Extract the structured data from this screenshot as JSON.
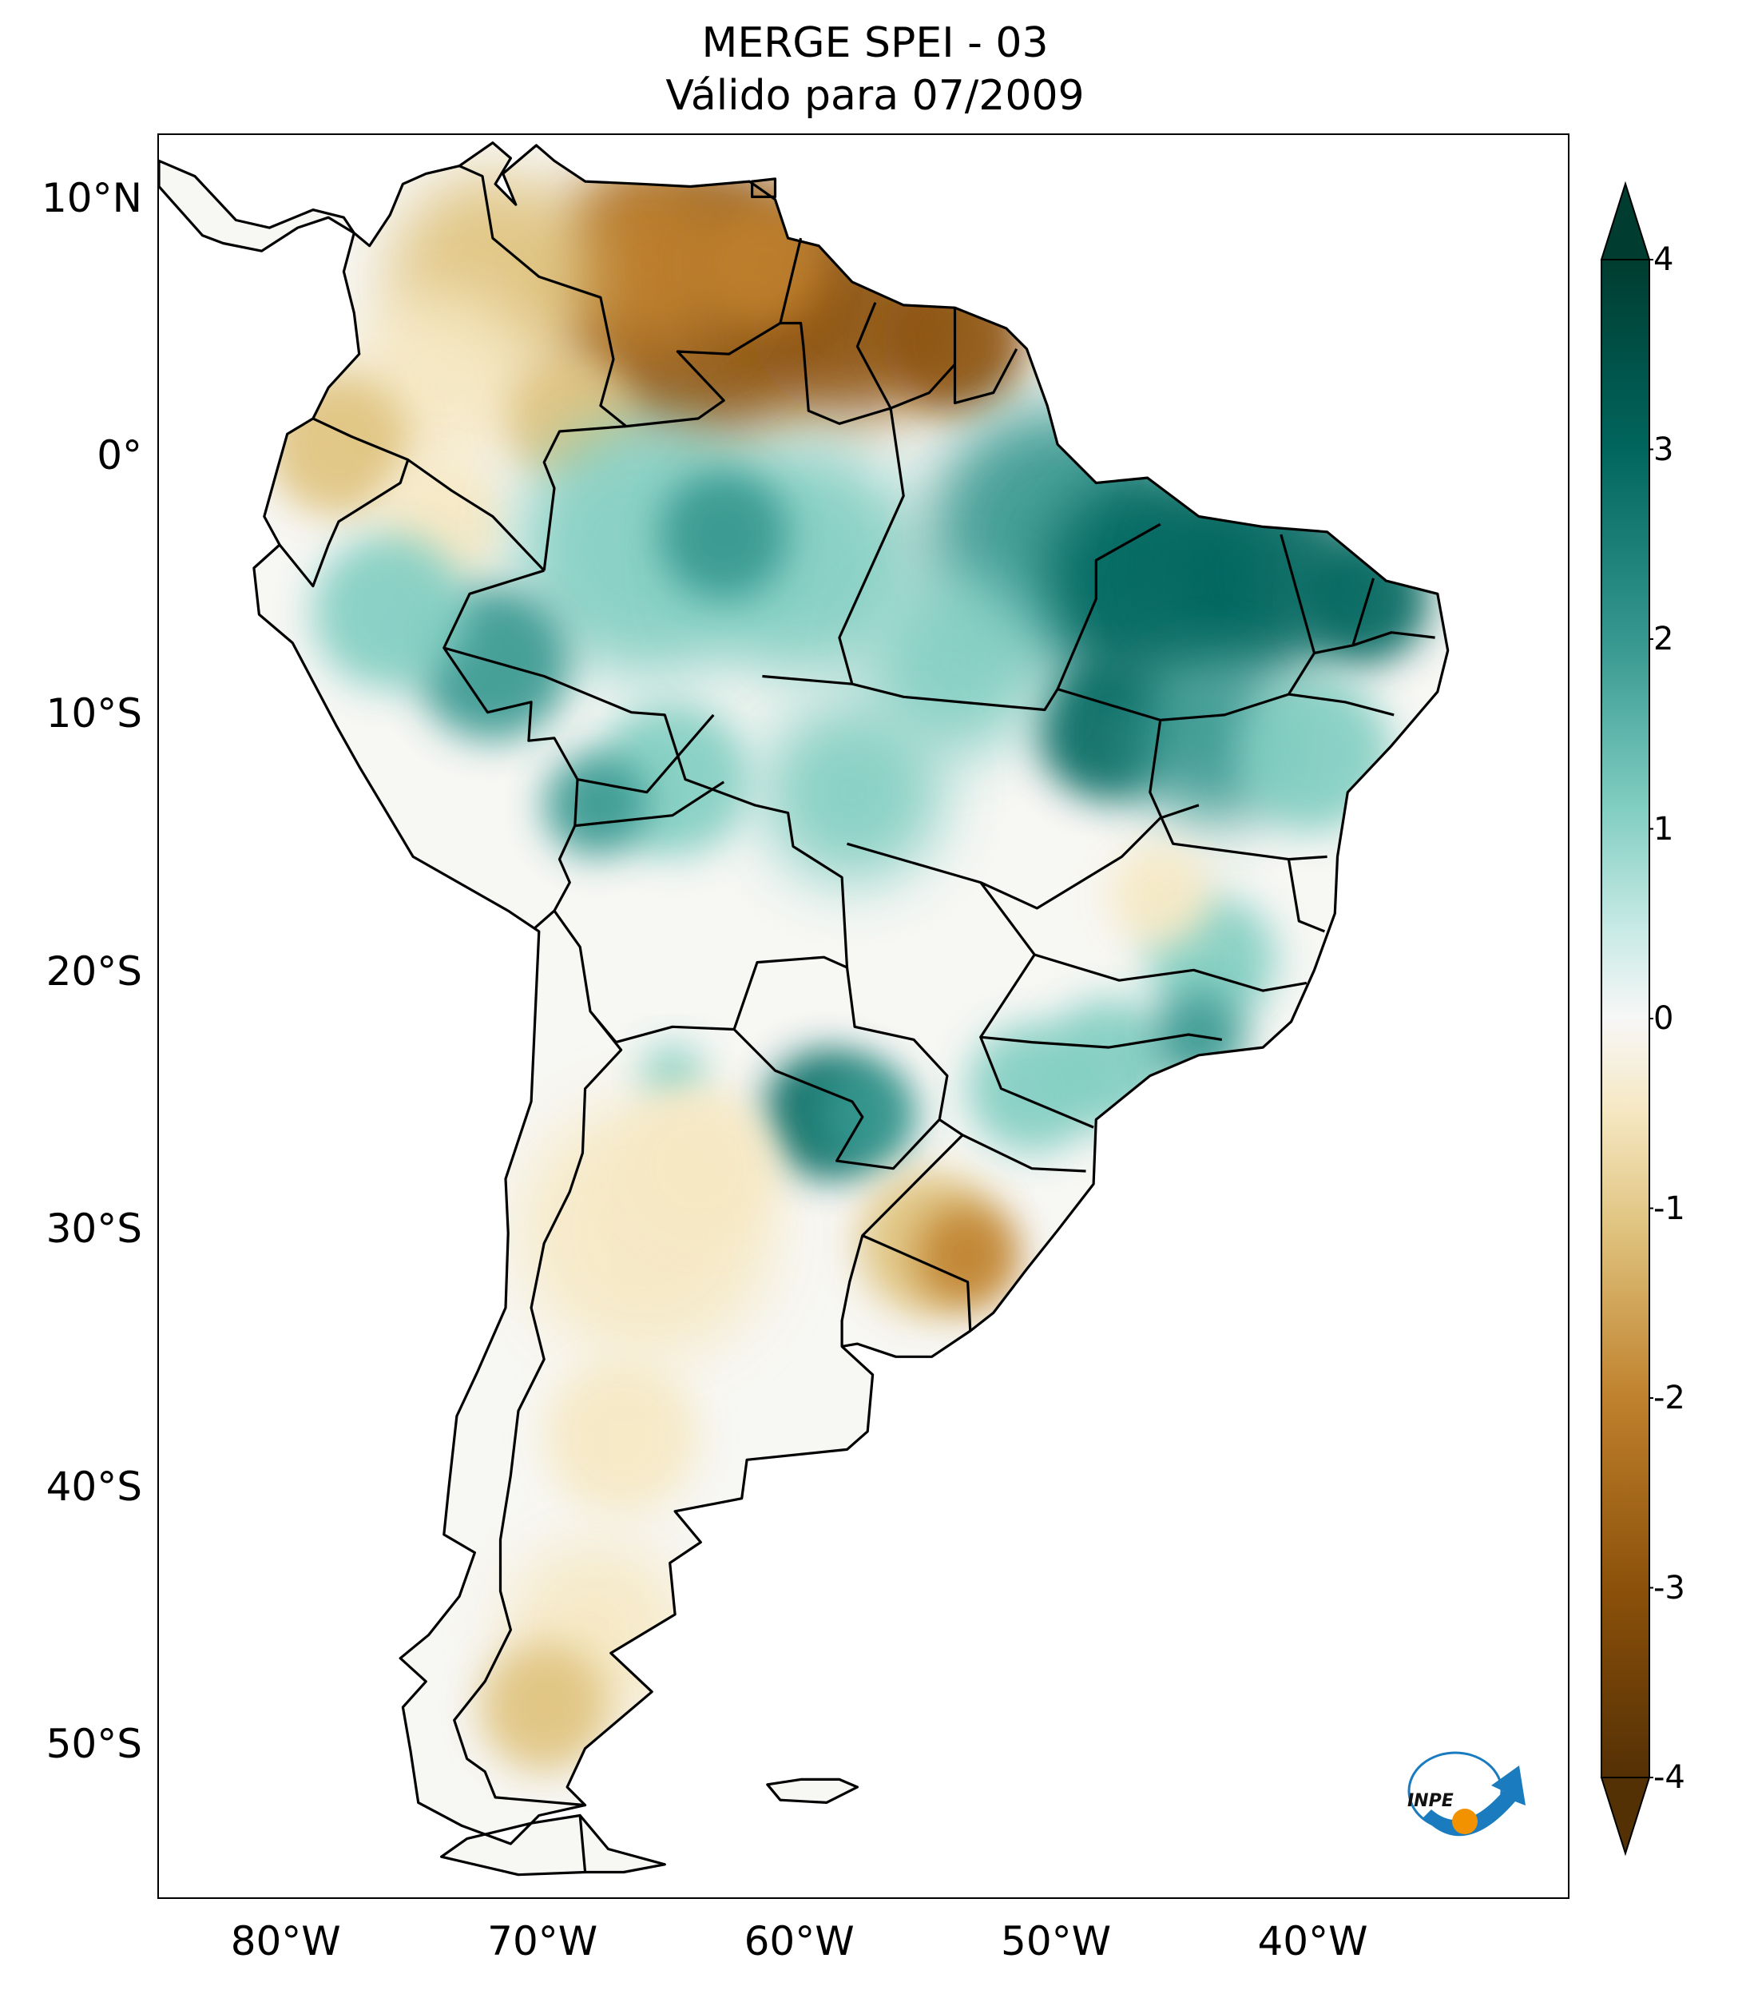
{
  "title": "MERGE   SPEI - 03",
  "subtitle": "Válido para 07/2009",
  "map": {
    "extent": {
      "lon_min": -85,
      "lon_max": -30,
      "lat_min": -56,
      "lat_max": 12.5
    },
    "y_ticks": [
      {
        "lat": 10,
        "label": "10°N"
      },
      {
        "lat": 0,
        "label": "0°"
      },
      {
        "lat": -10,
        "label": "10°S"
      },
      {
        "lat": -20,
        "label": "20°S"
      },
      {
        "lat": -30,
        "label": "30°S"
      },
      {
        "lat": -40,
        "label": "40°S"
      },
      {
        "lat": -50,
        "label": "50°S"
      }
    ],
    "x_ticks": [
      {
        "lon": -80,
        "label": "80°W"
      },
      {
        "lon": -70,
        "label": "70°W"
      },
      {
        "lon": -60,
        "label": "60°W"
      },
      {
        "lon": -50,
        "label": "50°W"
      },
      {
        "lon": -40,
        "label": "40°W"
      }
    ],
    "anomaly_regions": [
      {
        "region": "Venezuela / Guianas",
        "level": "dry",
        "value": -3.0
      },
      {
        "region": "Colombia / Ecuador",
        "level": "dry",
        "value": -1.0
      },
      {
        "region": "Amazon basin",
        "level": "wet",
        "value": 1.8
      },
      {
        "region": "Pará / Maranhão / Piauí / Tocantins",
        "level": "very wet",
        "value": 3.5
      },
      {
        "region": "Southeast Brazil",
        "level": "wet",
        "value": 2.0
      },
      {
        "region": "Paraguay / N Argentina",
        "level": "very wet",
        "value": 3.2
      },
      {
        "region": "Central Argentina",
        "level": "dry",
        "value": -1.0
      },
      {
        "region": "Uruguay / Rio Grande do Sul",
        "level": "dry",
        "value": -1.6
      },
      {
        "region": "Patagonia",
        "level": "dry",
        "value": -1.2
      }
    ]
  },
  "colorbar": {
    "min": -4,
    "max": 4,
    "ticks": [
      "4",
      "3",
      "2",
      "1",
      "0",
      "-1",
      "-2",
      "-3",
      "-4"
    ],
    "colors": {
      "dark_brown": "#543005",
      "brown": "#8c510a",
      "tan": "#bf812d",
      "light_tan": "#dfc27d",
      "pale": "#f6e8c3",
      "white": "#f5f5f5",
      "pale_teal": "#c7eae5",
      "teal": "#80cdc1",
      "mid_teal": "#35978f",
      "dark_teal": "#01665e",
      "darkest_teal": "#003c30"
    }
  },
  "logo": {
    "text": "INPE"
  }
}
